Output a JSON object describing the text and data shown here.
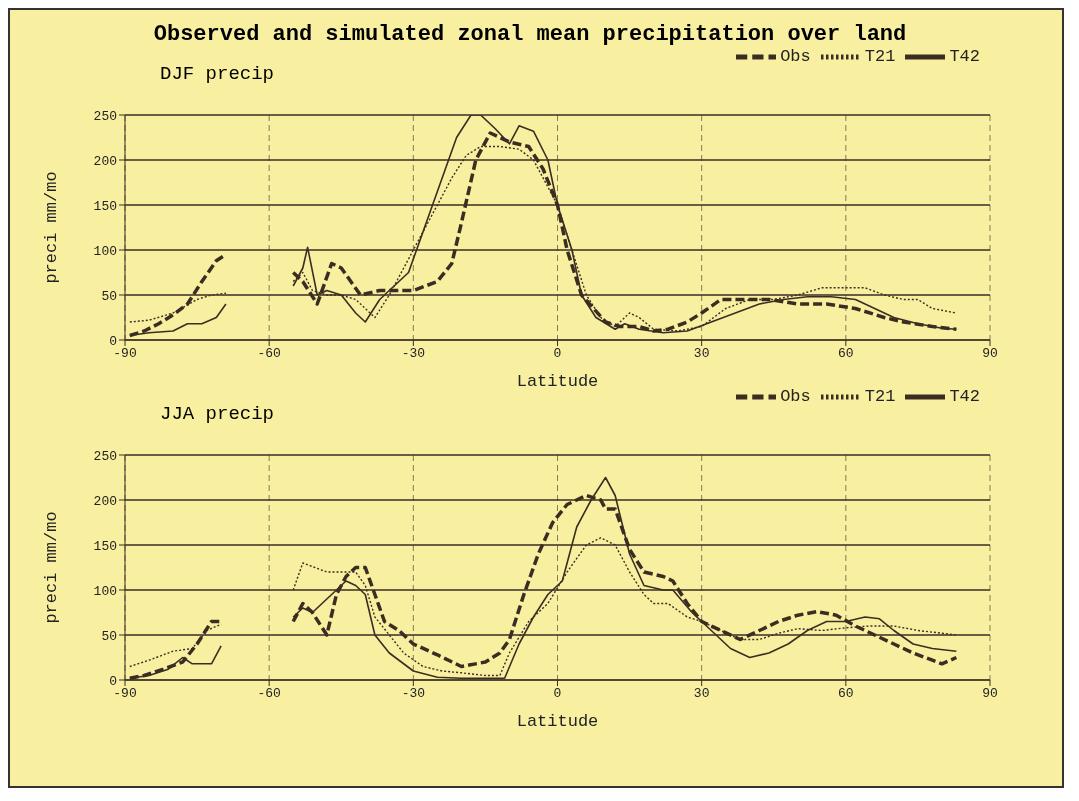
{
  "chart_data": [
    {
      "type": "line",
      "title": "Observed and simulated zonal mean precipitation over land",
      "subtitle": "DJF precip",
      "xlabel": "Latitude",
      "ylabel": "preci mm/mo",
      "xlim": [
        -90,
        90
      ],
      "xticks": [
        -90,
        -60,
        -30,
        0,
        30,
        60,
        90
      ],
      "ylim": [
        0,
        250
      ],
      "yticks": [
        0,
        50,
        100,
        150,
        200,
        250
      ],
      "grid": true,
      "legend": "top right",
      "series": [
        {
          "name": "Obs",
          "color": "#3a2e22",
          "line_style": "dashed",
          "x": [
            -89,
            -86,
            -83,
            -80,
            -77,
            -74,
            -71,
            -69,
            -62,
            -55,
            -53,
            -50,
            -47,
            -45,
            -41,
            -37,
            -33,
            -30,
            -25,
            -22,
            -20,
            -17,
            -14,
            -10,
            -6,
            -3,
            0,
            2,
            5,
            10,
            13,
            17,
            20,
            23,
            27,
            30,
            34,
            38,
            44,
            50,
            56,
            62,
            68,
            72,
            78,
            83
          ],
          "values": [
            5,
            10,
            18,
            28,
            40,
            65,
            88,
            95,
            null,
            75,
            65,
            40,
            85,
            80,
            50,
            55,
            55,
            55,
            65,
            85,
            130,
            200,
            230,
            220,
            215,
            190,
            150,
            100,
            50,
            20,
            15,
            15,
            10,
            12,
            20,
            30,
            45,
            45,
            45,
            40,
            40,
            35,
            25,
            20,
            15,
            12
          ]
        },
        {
          "name": "T21",
          "color": "#3a2e22",
          "line_style": "dotted",
          "x": [
            -89,
            -85,
            -80,
            -75,
            -72,
            -69,
            -62,
            -55,
            -53,
            -51,
            -48,
            -45,
            -42,
            -38,
            -35,
            -32,
            -29,
            -25,
            -22,
            -19,
            -16,
            -12,
            -8,
            -5,
            -2,
            0,
            3,
            6,
            9,
            12,
            15,
            17,
            20,
            25,
            30,
            35,
            40,
            45,
            50,
            55,
            60,
            64,
            68,
            72,
            75,
            78,
            83
          ],
          "values": [
            20,
            22,
            30,
            45,
            50,
            52,
            null,
            65,
            75,
            55,
            50,
            50,
            45,
            25,
            50,
            80,
            110,
            150,
            180,
            205,
            215,
            215,
            212,
            200,
            170,
            150,
            100,
            50,
            25,
            15,
            30,
            25,
            12,
            10,
            15,
            35,
            45,
            45,
            50,
            58,
            58,
            58,
            50,
            45,
            45,
            35,
            30
          ]
        },
        {
          "name": "T42",
          "color": "#3a2e22",
          "line_style": "solid",
          "x": [
            -89,
            -85,
            -80,
            -77,
            -74,
            -71,
            -69,
            -62,
            -55,
            -53,
            -52,
            -50,
            -48,
            -45,
            -42,
            -40,
            -37,
            -34,
            -31,
            -28,
            -24,
            -21,
            -18,
            -16,
            -13,
            -10,
            -8,
            -5,
            -2,
            0,
            3,
            5,
            8,
            12,
            14,
            17,
            22,
            27,
            32,
            37,
            42,
            47,
            52,
            57,
            62,
            66,
            70,
            75,
            80,
            83
          ],
          "values": [
            5,
            8,
            10,
            18,
            18,
            25,
            40,
            null,
            60,
            80,
            103,
            50,
            55,
            50,
            30,
            20,
            45,
            60,
            75,
            120,
            180,
            225,
            250,
            250,
            235,
            218,
            238,
            232,
            200,
            150,
            100,
            50,
            25,
            12,
            18,
            12,
            8,
            10,
            20,
            30,
            40,
            45,
            48,
            48,
            45,
            35,
            25,
            18,
            13,
            12
          ]
        }
      ]
    },
    {
      "type": "line",
      "subtitle": "JJA precip",
      "xlabel": "Latitude",
      "ylabel": "preci mm/mo",
      "xlim": [
        -90,
        90
      ],
      "xticks": [
        -90,
        -60,
        -30,
        0,
        30,
        60,
        90
      ],
      "ylim": [
        0,
        250
      ],
      "yticks": [
        0,
        50,
        100,
        150,
        200,
        250
      ],
      "grid": true,
      "legend": "top right",
      "series": [
        {
          "name": "Obs",
          "color": "#3a2e22",
          "line_style": "dashed",
          "x": [
            -89,
            -86,
            -82,
            -78,
            -75,
            -72,
            -70,
            -62,
            -55,
            -53,
            -51,
            -48,
            -46,
            -44,
            -42,
            -40,
            -38,
            -36,
            -33,
            -30,
            -25,
            -20,
            -15,
            -12,
            -10,
            -7,
            -4,
            -1,
            2,
            6,
            9,
            10,
            12,
            15,
            18,
            22,
            24,
            27,
            30,
            34,
            38,
            42,
            46,
            50,
            54,
            58,
            62,
            66,
            70,
            74,
            78,
            80,
            83
          ],
          "values": [
            2,
            5,
            12,
            20,
            40,
            65,
            65,
            null,
            65,
            85,
            75,
            50,
            95,
            115,
            125,
            125,
            95,
            65,
            55,
            40,
            28,
            15,
            20,
            30,
            45,
            95,
            140,
            175,
            195,
            205,
            200,
            190,
            190,
            145,
            120,
            115,
            110,
            85,
            65,
            55,
            45,
            55,
            65,
            72,
            76,
            72,
            60,
            50,
            40,
            30,
            22,
            18,
            25
          ]
        },
        {
          "name": "T21",
          "color": "#3a2e22",
          "line_style": "dotted",
          "x": [
            -89,
            -85,
            -80,
            -76,
            -73,
            -70,
            -62,
            -55,
            -53,
            -48,
            -45,
            -42,
            -40,
            -38,
            -35,
            -32,
            -28,
            -24,
            -20,
            -15,
            -12,
            -10,
            -6,
            -2,
            2,
            6,
            9,
            12,
            15,
            18,
            20,
            23,
            27,
            30,
            34,
            38,
            42,
            46,
            50,
            55,
            60,
            65,
            70,
            75,
            80,
            83
          ],
          "values": [
            15,
            22,
            32,
            35,
            55,
            62,
            null,
            100,
            130,
            120,
            120,
            120,
            105,
            70,
            50,
            30,
            15,
            10,
            8,
            5,
            5,
            30,
            65,
            85,
            120,
            150,
            158,
            150,
            120,
            95,
            85,
            85,
            70,
            65,
            55,
            45,
            45,
            52,
            57,
            55,
            58,
            60,
            60,
            55,
            52,
            50
          ]
        },
        {
          "name": "T42",
          "color": "#3a2e22",
          "line_style": "solid",
          "x": [
            -89,
            -85,
            -81,
            -78,
            -76,
            -72,
            -70,
            -62,
            -55,
            -53,
            -51,
            -47,
            -44,
            -42,
            -40,
            -38,
            -35,
            -30,
            -25,
            -20,
            -15,
            -11,
            -8,
            -5,
            -2,
            1,
            4,
            7,
            10,
            12,
            15,
            18,
            22,
            24,
            28,
            32,
            36,
            40,
            44,
            48,
            52,
            56,
            60,
            64,
            67,
            70,
            74,
            78,
            83
          ],
          "values": [
            2,
            5,
            12,
            25,
            18,
            18,
            38,
            null,
            70,
            80,
            75,
            95,
            110,
            105,
            95,
            50,
            30,
            10,
            3,
            2,
            2,
            2,
            40,
            70,
            95,
            110,
            170,
            200,
            225,
            205,
            140,
            105,
            100,
            100,
            75,
            55,
            35,
            25,
            30,
            40,
            55,
            65,
            65,
            70,
            68,
            55,
            40,
            35,
            32
          ]
        }
      ]
    }
  ]
}
